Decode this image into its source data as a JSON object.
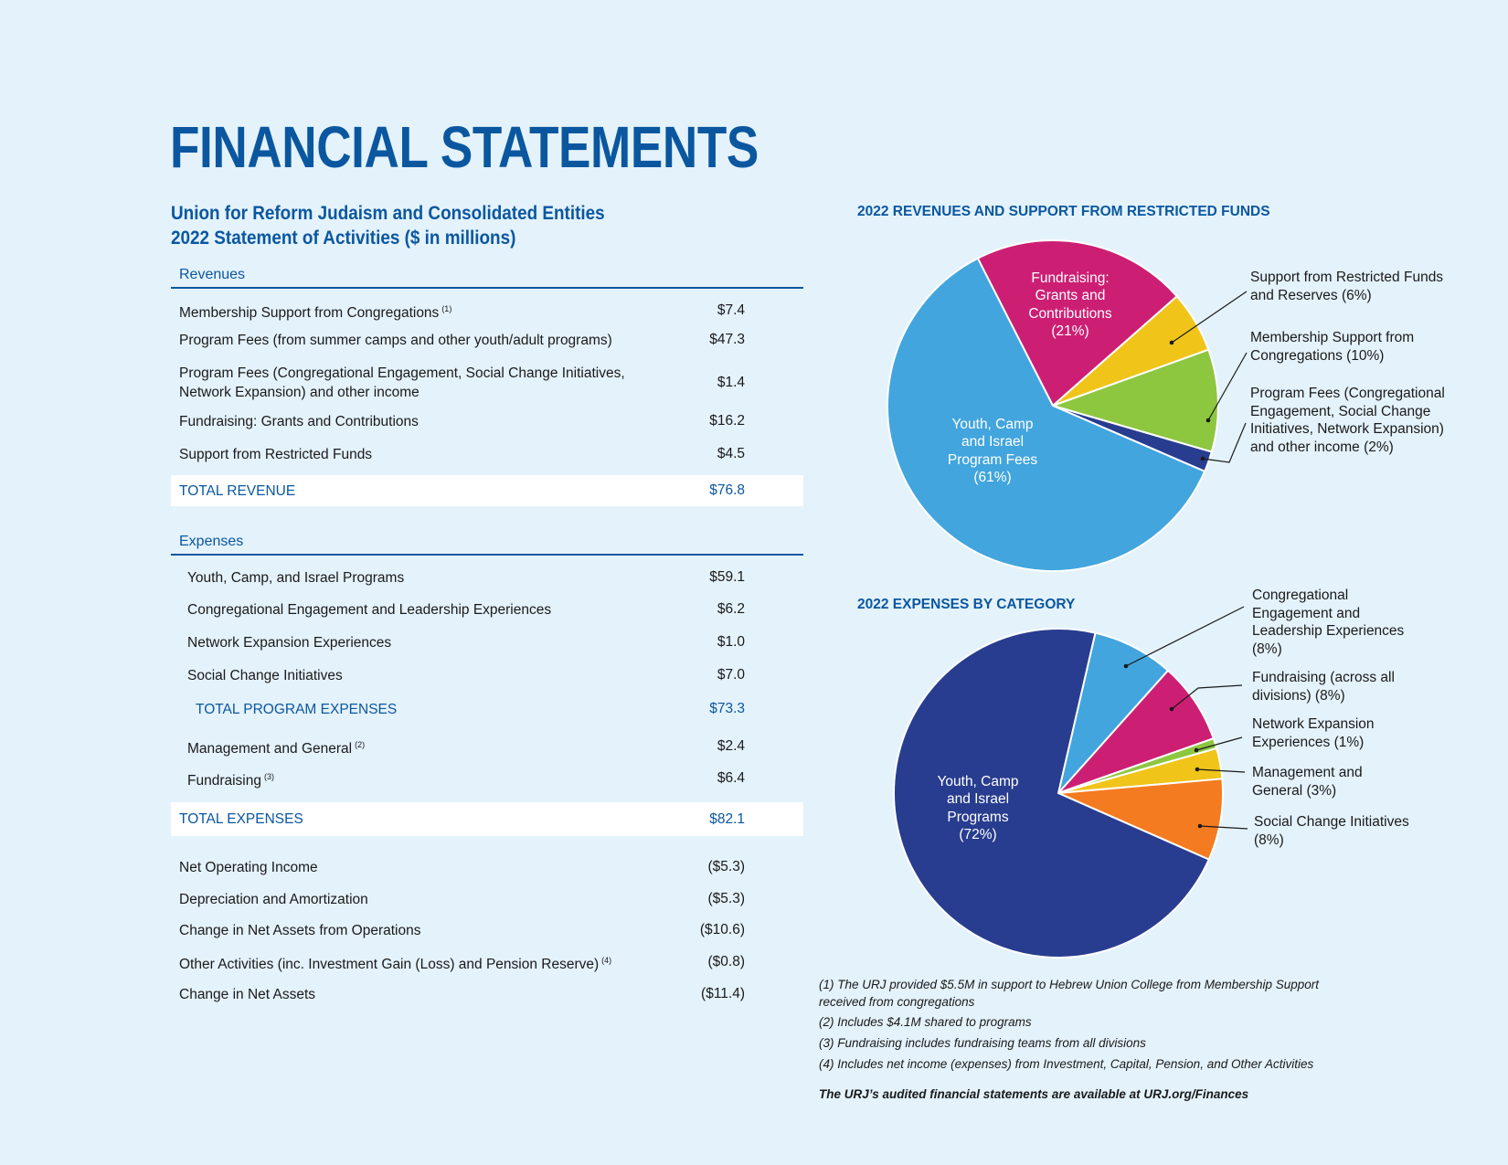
{
  "title": "FINANCIAL STATEMENTS",
  "subtitle": [
    "Union for Reform Judaism and Consolidated Entities",
    "2022 Statement of Activities ($ in millions)"
  ],
  "revenues": {
    "heading": "Revenues",
    "rows": [
      {
        "label": "Membership Support from Congregations",
        "note": "(1)",
        "value": "$7.4"
      },
      {
        "label": "Program Fees (from summer camps and other youth/adult programs)",
        "value": "$47.3"
      },
      {
        "label": "Program Fees (Congregational Engagement, Social Change Initiatives,\nNetwork Expansion) and other income",
        "value": "$1.4"
      },
      {
        "label": "Fundraising: Grants and Contributions",
        "value": "$16.2"
      },
      {
        "label": "Support from Restricted Funds",
        "value": "$4.5"
      }
    ],
    "total": {
      "label": "TOTAL REVENUE",
      "value": "$76.8"
    }
  },
  "expenses": {
    "heading": "Expenses",
    "rows": [
      {
        "label": "Youth, Camp, and Israel Programs",
        "value": "$59.1"
      },
      {
        "label": "Congregational Engagement and Leadership Experiences",
        "value": "$6.2"
      },
      {
        "label": "Network Expansion Experiences",
        "value": "$1.0"
      },
      {
        "label": "Social Change Initiatives",
        "value": "$7.0"
      }
    ],
    "program_total": {
      "label": "TOTAL PROGRAM EXPENSES",
      "value": "$73.3"
    },
    "other_rows": [
      {
        "label": "Management and General",
        "note": "(2)",
        "value": "$2.4"
      },
      {
        "label": "Fundraising",
        "note": "(3)",
        "value": "$6.4"
      }
    ],
    "total": {
      "label": "TOTAL EXPENSES",
      "value": "$82.1"
    }
  },
  "summary": [
    {
      "label": "Net Operating Income",
      "value": "($5.3)"
    },
    {
      "label": "Depreciation and Amortization",
      "value": "($5.3)"
    },
    {
      "label": "Change in Net Assets from Operations",
      "value": "($10.6)"
    },
    {
      "label": "Other Activities (inc. Investment Gain (Loss) and Pension Reserve)",
      "note": "(4)",
      "value": "($0.8)"
    },
    {
      "label": "Change in Net Assets",
      "value": "($11.4)"
    }
  ],
  "chart_data": [
    {
      "type": "pie",
      "title": "2022 REVENUES AND SUPPORT FROM RESTRICTED FUNDS",
      "slices": [
        {
          "label": "Fundraising:\nGrants and\nContributions\n(21%)",
          "value": 21,
          "color": "#cc1f74"
        },
        {
          "label": "Support from Restricted Funds\nand Reserves (6%)",
          "value": 6,
          "color": "#f0c419"
        },
        {
          "label": "Membership Support from\nCongregations (10%)",
          "value": 10,
          "color": "#8dc63f"
        },
        {
          "label": "Program Fees (Congregational\nEngagement, Social Change\nInitiatives, Network Expansion)\nand other income (2%)",
          "value": 2,
          "color": "#283d8f"
        },
        {
          "label": "Youth, Camp\nand Israel\nProgram Fees\n(61%)",
          "value": 61,
          "color": "#42a5dd"
        }
      ]
    },
    {
      "type": "pie",
      "title": "2022 EXPENSES BY CATEGORY",
      "slices": [
        {
          "label": "Congregational\nEngagement and\nLeadership Experiences\n(8%)",
          "value": 8,
          "color": "#42a5dd"
        },
        {
          "label": "Fundraising (across all\ndivisions) (8%)",
          "value": 8,
          "color": "#cc1f74"
        },
        {
          "label": "Network Expansion\nExperiences (1%)",
          "value": 1,
          "color": "#8dc63f"
        },
        {
          "label": "Management and\nGeneral (3%)",
          "value": 3,
          "color": "#f0c419"
        },
        {
          "label": "Social Change Initiatives\n(8%)",
          "value": 8,
          "color": "#f47b20"
        },
        {
          "label": "Youth, Camp\nand Israel\nPrograms\n(72%)",
          "value": 72,
          "color": "#283d8f"
        }
      ]
    }
  ],
  "footnotes": [
    "(1) The URJ provided $5.5M in support to Hebrew Union College from Membership Support",
    "received from congregations",
    "(2) Includes $4.1M shared to programs",
    "(3) Fundraising includes fundraising teams from all divisions",
    "(4) Includes net income (expenses) from Investment, Capital, Pension, and Other Activities"
  ],
  "audited_note": "The URJ’s audited financial statements are available at URJ.org/Finances"
}
